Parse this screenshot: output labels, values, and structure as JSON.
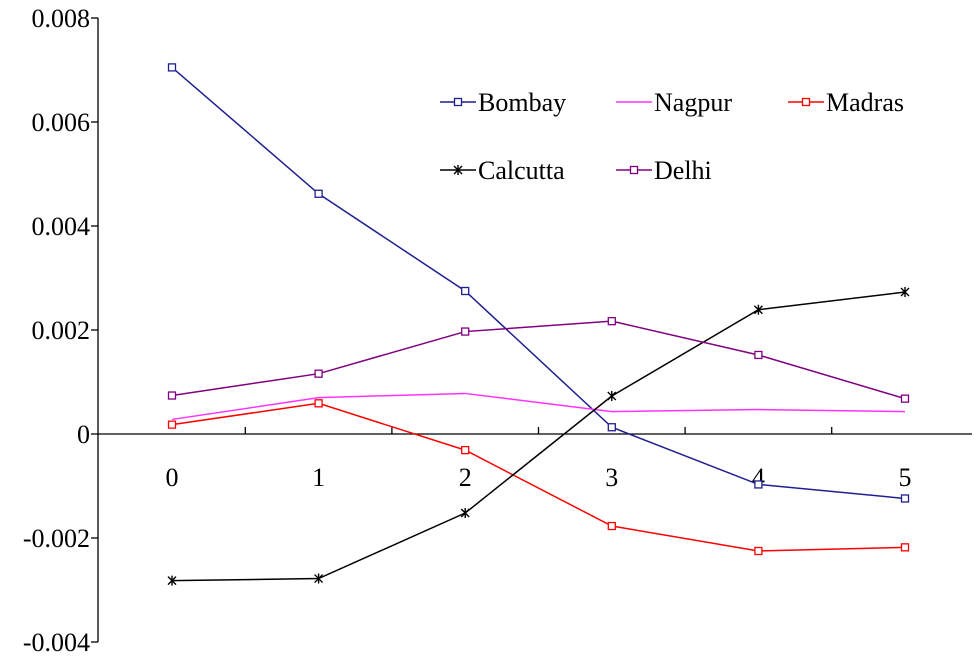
{
  "chart_data": {
    "type": "line",
    "title": "",
    "xlabel": "",
    "ylabel": "",
    "x": [
      0,
      1,
      2,
      3,
      4,
      5
    ],
    "ylim": [
      -0.004,
      0.008
    ],
    "xlim": [
      -0.5,
      5.5
    ],
    "y_ticks": [
      0.008,
      0.006,
      0.004,
      0.002,
      0,
      -0.002,
      -0.004
    ],
    "y_tick_labels": [
      "0.008",
      "0.006",
      "0.004",
      "0.002",
      "0",
      "-0.002",
      "-0.004"
    ],
    "x_tick_labels": [
      "0",
      "1",
      "2",
      "3",
      "4",
      "5"
    ],
    "grid": false,
    "legend_position": "top-right",
    "series": [
      {
        "name": "Bombay",
        "color": "#1f1f8f",
        "marker": "square",
        "values": [
          0.00705,
          0.00462,
          0.00275,
          0.00013,
          -0.00097,
          -0.00124
        ]
      },
      {
        "name": "Nagpur",
        "color": "#ff33ff",
        "marker": "none",
        "values": [
          0.00028,
          0.0007,
          0.00078,
          0.00043,
          0.00047,
          0.00043
        ]
      },
      {
        "name": "Madras",
        "color": "#ff0000",
        "marker": "square",
        "values": [
          0.00018,
          0.00059,
          -0.00031,
          -0.00177,
          -0.00225,
          -0.00218
        ]
      },
      {
        "name": "Calcutta",
        "color": "#000000",
        "marker": "star",
        "values": [
          -0.00282,
          -0.00278,
          -0.00152,
          0.00073,
          0.00239,
          0.00273
        ]
      },
      {
        "name": "Delhi",
        "color": "#800080",
        "marker": "square",
        "values": [
          0.00074,
          0.00116,
          0.00197,
          0.00217,
          0.00152,
          0.00068
        ]
      }
    ],
    "legend_rows": [
      [
        "Bombay",
        "Nagpur",
        "Madras"
      ],
      [
        "Calcutta",
        "Delhi"
      ]
    ]
  }
}
